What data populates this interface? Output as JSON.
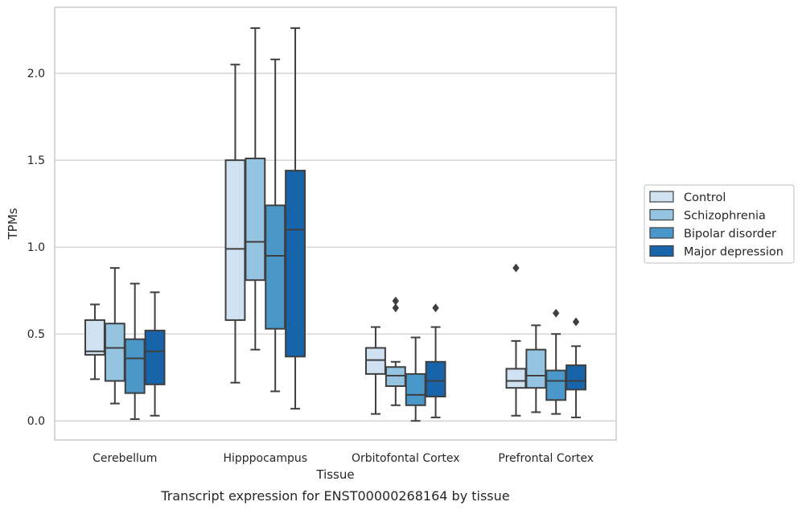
{
  "chart_data": {
    "type": "box",
    "caption": "Transcript expression for ENST00000268164 by tissue",
    "xlabel": "Tissue",
    "ylabel": "TPMs",
    "ylim": [
      -0.11,
      2.38
    ],
    "yticks": [
      0.0,
      0.5,
      1.0,
      1.5,
      2.0
    ],
    "ytick_labels": [
      "0.0",
      "0.5",
      "1.0",
      "1.5",
      "2.0"
    ],
    "grid": "horizontal",
    "legend_position": "right",
    "categories": [
      "Cerebellum",
      "Hipppocampus",
      "Orbitofontal Cortex",
      "Prefrontal Cortex"
    ],
    "series": [
      {
        "name": "Control",
        "color": "#d0e1f2",
        "boxes": [
          {
            "whislo": 0.24,
            "q1": 0.38,
            "med": 0.4,
            "q3": 0.58,
            "whishi": 0.67,
            "fliers": []
          },
          {
            "whislo": 0.22,
            "q1": 0.58,
            "med": 0.99,
            "q3": 1.5,
            "whishi": 2.05,
            "fliers": []
          },
          {
            "whislo": 0.04,
            "q1": 0.27,
            "med": 0.35,
            "q3": 0.42,
            "whishi": 0.54,
            "fliers": []
          },
          {
            "whislo": 0.03,
            "q1": 0.19,
            "med": 0.23,
            "q3": 0.3,
            "whishi": 0.46,
            "fliers": [
              0.88
            ]
          }
        ]
      },
      {
        "name": "Schizophrenia",
        "color": "#94c4df",
        "boxes": [
          {
            "whislo": 0.1,
            "q1": 0.23,
            "med": 0.42,
            "q3": 0.56,
            "whishi": 0.88,
            "fliers": []
          },
          {
            "whislo": 0.41,
            "q1": 0.81,
            "med": 1.03,
            "q3": 1.51,
            "whishi": 2.26,
            "fliers": []
          },
          {
            "whislo": 0.09,
            "q1": 0.2,
            "med": 0.26,
            "q3": 0.31,
            "whishi": 0.34,
            "fliers": [
              0.65,
              0.69
            ]
          },
          {
            "whislo": 0.05,
            "q1": 0.19,
            "med": 0.26,
            "q3": 0.41,
            "whishi": 0.55,
            "fliers": []
          }
        ]
      },
      {
        "name": "Bipolar disorder",
        "color": "#4a98c9",
        "boxes": [
          {
            "whislo": 0.01,
            "q1": 0.16,
            "med": 0.36,
            "q3": 0.47,
            "whishi": 0.79,
            "fliers": []
          },
          {
            "whislo": 0.17,
            "q1": 0.53,
            "med": 0.95,
            "q3": 1.24,
            "whishi": 2.08,
            "fliers": []
          },
          {
            "whislo": 0.0,
            "q1": 0.09,
            "med": 0.15,
            "q3": 0.27,
            "whishi": 0.48,
            "fliers": []
          },
          {
            "whislo": 0.04,
            "q1": 0.12,
            "med": 0.23,
            "q3": 0.29,
            "whishi": 0.5,
            "fliers": [
              0.62
            ]
          }
        ]
      },
      {
        "name": "Major depression",
        "color": "#1764ab",
        "boxes": [
          {
            "whislo": 0.03,
            "q1": 0.21,
            "med": 0.4,
            "q3": 0.52,
            "whishi": 0.74,
            "fliers": []
          },
          {
            "whislo": 0.07,
            "q1": 0.37,
            "med": 1.1,
            "q3": 1.44,
            "whishi": 2.26,
            "fliers": []
          },
          {
            "whislo": 0.02,
            "q1": 0.14,
            "med": 0.23,
            "q3": 0.34,
            "whishi": 0.54,
            "fliers": [
              0.65
            ]
          },
          {
            "whislo": 0.02,
            "q1": 0.18,
            "med": 0.23,
            "q3": 0.32,
            "whishi": 0.43,
            "fliers": [
              0.57
            ]
          }
        ]
      }
    ]
  }
}
